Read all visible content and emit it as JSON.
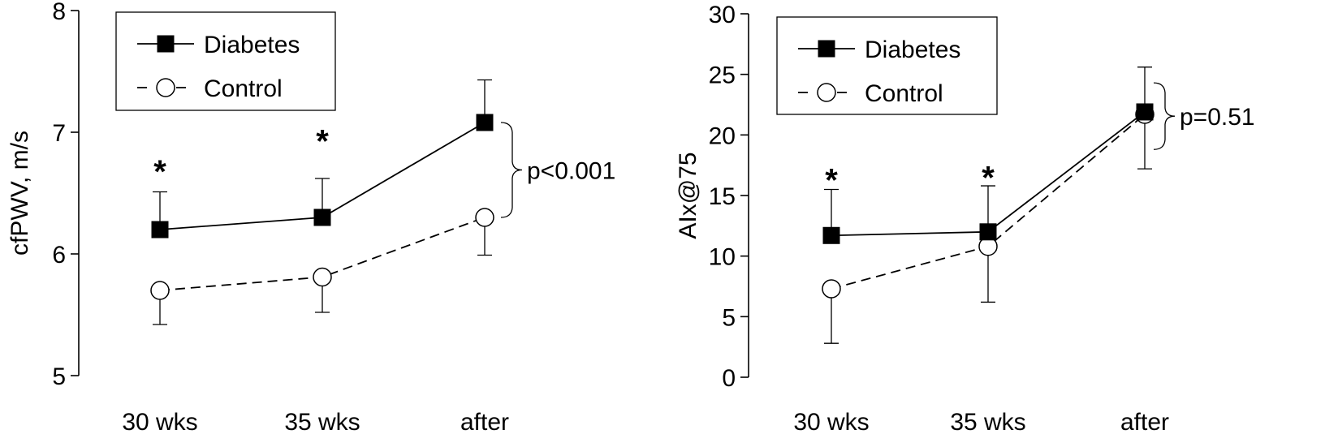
{
  "chart_data": [
    {
      "type": "line",
      "categories": [
        "30 wks",
        "35 wks",
        "after"
      ],
      "ylabel": "cfPWV, m/s",
      "xlabel": "",
      "ylim": [
        5,
        8
      ],
      "yticks": [
        5,
        6,
        7,
        8
      ],
      "grid": false,
      "legend_position": "top-left",
      "series": [
        {
          "name": "Diabetes",
          "style": "solid",
          "marker": "filled-square",
          "values": [
            6.2,
            6.3,
            7.08
          ],
          "error_upper": [
            6.51,
            6.62,
            7.43
          ]
        },
        {
          "name": "Control",
          "style": "dashed",
          "marker": "open-circle",
          "values": [
            5.7,
            5.81,
            6.3
          ],
          "error_lower": [
            5.42,
            5.52,
            5.99
          ]
        }
      ],
      "significance_marks": [
        {
          "category": "30 wks",
          "symbol": "*",
          "y": 6.72
        },
        {
          "category": "35 wks",
          "symbol": "*",
          "y": 6.97
        }
      ],
      "bracket": {
        "category": "after",
        "from": 6.3,
        "to": 7.08,
        "label": "p<0.001"
      }
    },
    {
      "type": "line",
      "categories": [
        "30 wks",
        "35 wks",
        "after"
      ],
      "ylabel": "AIx@75",
      "xlabel": "",
      "ylim": [
        0,
        30
      ],
      "yticks": [
        0,
        5,
        10,
        15,
        20,
        25,
        30
      ],
      "grid": false,
      "legend_position": "top-left",
      "series": [
        {
          "name": "Diabetes",
          "style": "solid",
          "marker": "filled-square",
          "values": [
            11.7,
            12.0,
            21.9
          ],
          "error_upper": [
            15.5,
            15.8,
            25.6
          ]
        },
        {
          "name": "Control",
          "style": "dashed",
          "marker": "open-circle",
          "values": [
            7.3,
            10.8,
            21.7
          ],
          "error_lower": [
            2.8,
            6.2,
            17.2
          ]
        }
      ],
      "significance_marks": [
        {
          "category": "30 wks",
          "symbol": "*",
          "y": 16.7
        },
        {
          "category": "35 wks",
          "symbol": "*",
          "y": 16.9
        }
      ],
      "bracket": {
        "category": "after",
        "from": 18.8,
        "to": 24.3,
        "label": "p=0.51"
      }
    }
  ],
  "colors": {
    "ink": "#000000",
    "open_marker_fill": "#ffffff"
  }
}
